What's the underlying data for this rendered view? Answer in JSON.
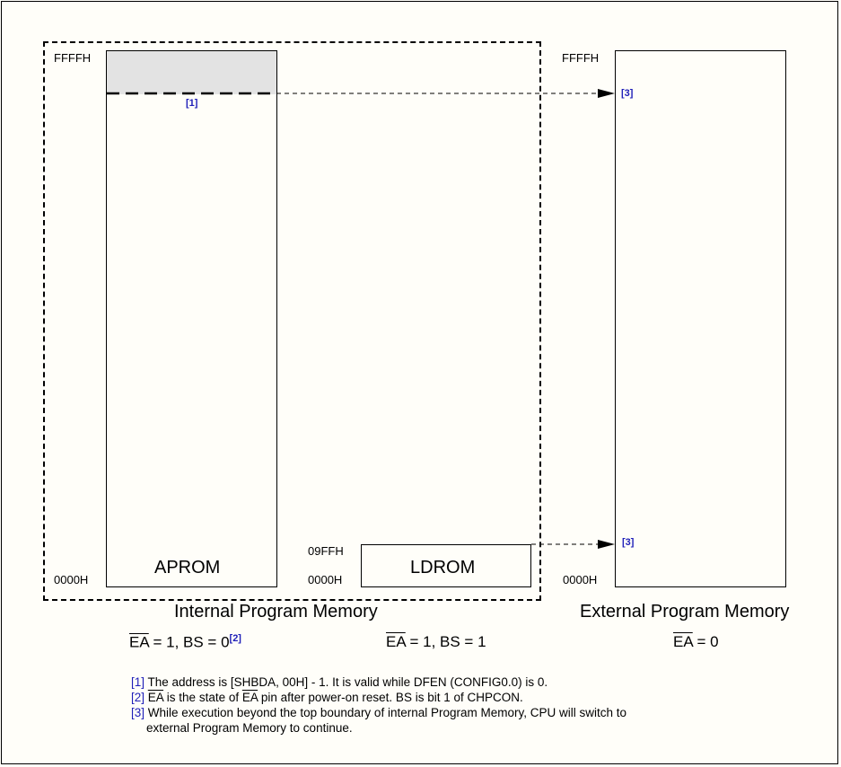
{
  "labels": {
    "internal_ffff": "FFFFH",
    "internal_0000": "0000H",
    "aprom": "APROM",
    "ldrom_09ff": "09FFH",
    "ldrom_0000": "0000H",
    "ldrom": "LDROM",
    "external_ffff": "FFFFH",
    "external_0000": "0000H",
    "ref1": "[1]",
    "ref3_top": "[3]",
    "ref3_bottom": "[3]",
    "ref2": "[2]"
  },
  "titles": {
    "internal": "Internal Program Memory",
    "external": "External Program Memory"
  },
  "conditions": {
    "ea": "EA",
    "aprom_rest": " = 1, BS = 0",
    "ldrom_rest": " = 1, BS = 1",
    "external_rest": " = 0"
  },
  "footnotes": {
    "n1_ref": "[1]",
    "n1_text": " The address is [SHBDA, 00H] - 1. It is valid while DFEN (CONFIG0.0) is 0.",
    "n2_ref": "[2]",
    "n2_text_a": " is the state of ",
    "n2_text_b": " pin after power-on reset. BS is bit 1 of CHPCON.",
    "n3_ref": "[3]",
    "n3_text_line1": " While execution beyond the top boundary of internal Program Memory, CPU will switch to",
    "n3_text_line2": "external Program Memory to continue."
  },
  "colors": {
    "reserved_fill": "#e3e3e3",
    "ref_blue": "#1f1fb8"
  }
}
